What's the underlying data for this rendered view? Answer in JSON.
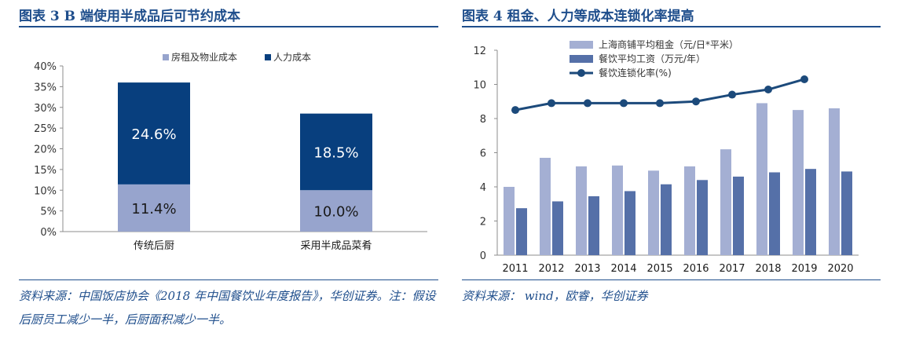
{
  "left": {
    "heading": "图表 3   B 端使用半成品后可节约成本",
    "source": "资料来源：中国饭店协会《2018 年中国餐饮业年度报告》，华创证券。注：假设后厨员工减少一半，后厨面积减少一半。",
    "chart_data": {
      "type": "bar",
      "stacked": true,
      "categories": [
        "传统后厨",
        "采用半成品菜肴"
      ],
      "series": [
        {
          "name": "房租及物业成本",
          "values": [
            11.4,
            10.0
          ],
          "labels": [
            "11.4%",
            "10.0%"
          ],
          "color": "#97a4cd"
        },
        {
          "name": "人力成本",
          "values": [
            24.6,
            18.5
          ],
          "labels": [
            "24.6%",
            "18.5%"
          ],
          "color": "#083f7e"
        }
      ],
      "y_ticks": [
        "0%",
        "5%",
        "10%",
        "15%",
        "20%",
        "25%",
        "30%",
        "35%",
        "40%"
      ],
      "ylim": [
        0,
        40
      ],
      "legend": "top"
    }
  },
  "right": {
    "heading": "图表 4   租金、人力等成本连锁化率提高",
    "source": "资料来源：  wind，欧睿，华创证券",
    "chart_data": {
      "type": "bar",
      "categories": [
        "2011",
        "2012",
        "2013",
        "2014",
        "2015",
        "2016",
        "2017",
        "2018",
        "2019",
        "2020"
      ],
      "series": [
        {
          "name": "上海商铺平均租金（元/日*平米）",
          "type": "bar",
          "values": [
            4.0,
            5.7,
            5.2,
            5.25,
            4.95,
            5.2,
            6.2,
            8.9,
            8.5,
            8.6
          ],
          "color": "#a4afd3"
        },
        {
          "name": "餐饮平均工资（万元/年）",
          "type": "bar",
          "values": [
            2.75,
            3.15,
            3.45,
            3.75,
            4.15,
            4.4,
            4.6,
            4.85,
            5.05,
            4.9
          ],
          "color": "#5570a8"
        },
        {
          "name": "餐饮连锁化率(%)",
          "type": "line",
          "values": [
            8.5,
            8.9,
            8.9,
            8.9,
            8.9,
            9.0,
            9.4,
            9.7,
            10.3,
            null
          ],
          "color": "#1c4a7b"
        }
      ],
      "y_ticks": [
        "0",
        "2",
        "4",
        "6",
        "8",
        "10",
        "12"
      ],
      "ylim": [
        0,
        12
      ],
      "legend": "top-left"
    }
  }
}
